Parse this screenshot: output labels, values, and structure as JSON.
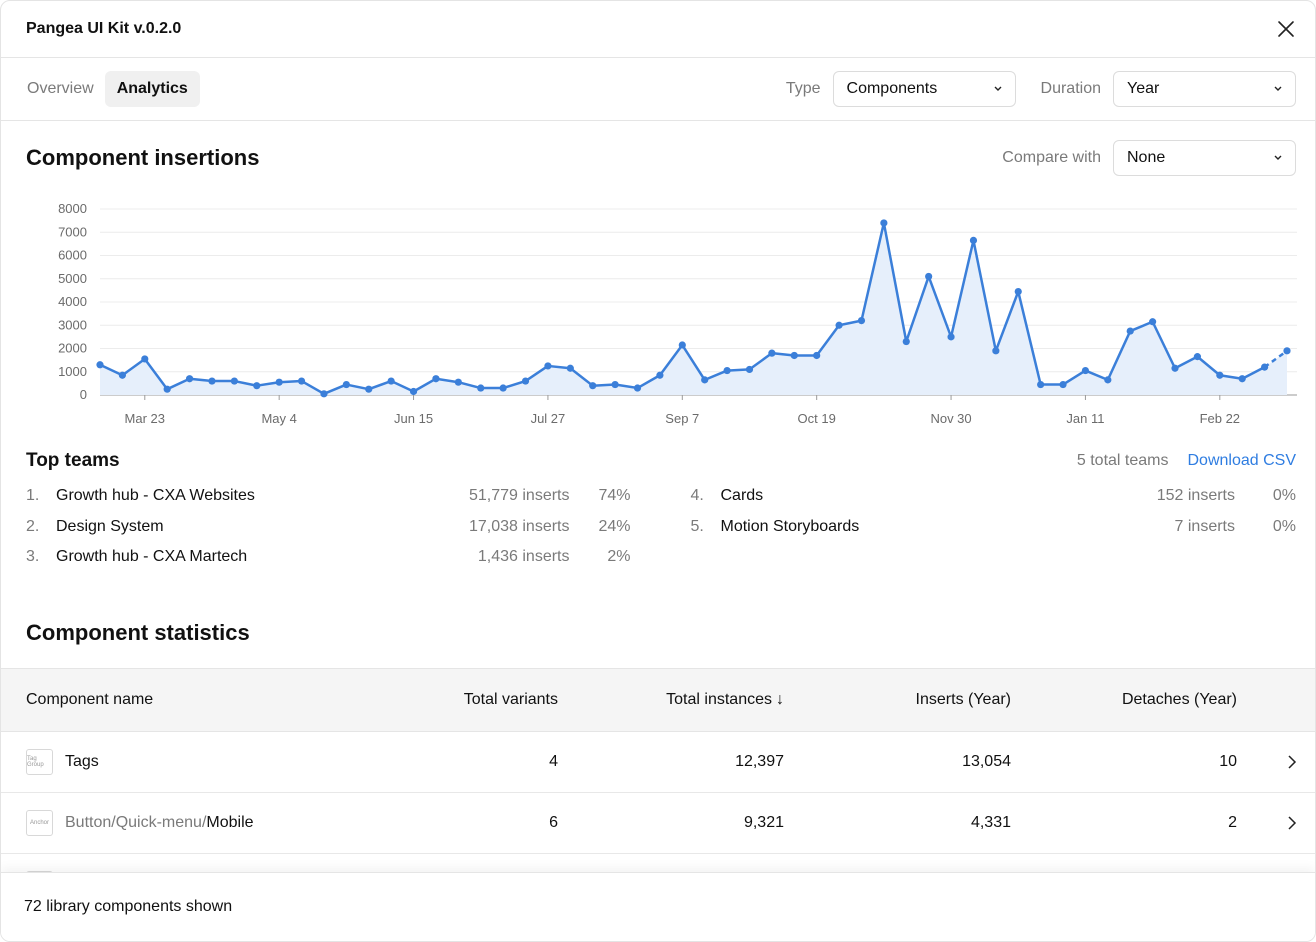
{
  "window": {
    "title": "Pangea UI Kit v.0.2.0"
  },
  "tabs": [
    {
      "label": "Overview",
      "active": false
    },
    {
      "label": "Analytics",
      "active": true
    }
  ],
  "filters": {
    "type_label": "Type",
    "type_value": "Components",
    "duration_label": "Duration",
    "duration_value": "Year"
  },
  "insertions": {
    "title": "Component insertions",
    "compare_label": "Compare with",
    "compare_value": "None"
  },
  "colors": {
    "accent": "#2f7de1",
    "line": "#3b7fd9",
    "area": "#e6effb"
  },
  "chart_data": {
    "type": "line",
    "title": "",
    "xlabel": "",
    "ylabel": "",
    "ylim": [
      0,
      8000
    ],
    "yticks": [
      "0",
      "1000",
      "2000",
      "3000",
      "4000",
      "5000",
      "6000",
      "7000",
      "8000"
    ],
    "xtick_labels": [
      "Mar 23",
      "May 4",
      "Jun 15",
      "Jul 27",
      "Sep 7",
      "Oct 19",
      "Nov 30",
      "Jan 11",
      "Feb 22"
    ],
    "grid": true,
    "values": [
      1300,
      850,
      1550,
      250,
      700,
      600,
      600,
      400,
      550,
      600,
      50,
      450,
      250,
      600,
      150,
      700,
      550,
      300,
      300,
      600,
      1250,
      1150,
      400,
      450,
      300,
      850,
      2150,
      650,
      1050,
      1100,
      1800,
      1700,
      1700,
      3000,
      3200,
      7400,
      2300,
      5100,
      2500,
      6650,
      1900,
      4450,
      450,
      450,
      1050,
      650,
      2750,
      3150,
      1150,
      1650,
      850,
      700,
      1200,
      1900
    ],
    "projected_last": true
  },
  "top_teams": {
    "title": "Top teams",
    "total": "5 total teams",
    "download": "Download CSV",
    "left": [
      {
        "num": "1.",
        "name": "Growth hub - CXA Websites",
        "inserts": "51,779 inserts",
        "pct": "74%"
      },
      {
        "num": "2.",
        "name": "Design System",
        "inserts": "17,038 inserts",
        "pct": "24%"
      },
      {
        "num": "3.",
        "name": "Growth hub - CXA Martech",
        "inserts": "1,436 inserts",
        "pct": "2%"
      }
    ],
    "right": [
      {
        "num": "4.",
        "name": "Cards",
        "inserts": "152 inserts",
        "pct": "0%"
      },
      {
        "num": "5.",
        "name": "Motion Storyboards",
        "inserts": "7 inserts",
        "pct": "0%"
      }
    ]
  },
  "stats": {
    "title": "Component statistics",
    "columns": {
      "name": "Component name",
      "variants": "Total variants",
      "instances": "Total instances",
      "sort_arrow": "↓",
      "inserts": "Inserts (Year)",
      "detaches": "Detaches (Year)"
    },
    "rows": [
      {
        "thumb": "Tag Group",
        "prefix": "",
        "name": "Tags",
        "variants": "4",
        "instances": "12,397",
        "inserts": "13,054",
        "detaches": "10"
      },
      {
        "thumb": "Anchor",
        "prefix": "Button/Quick-menu/",
        "name": "Mobile",
        "variants": "6",
        "instances": "9,321",
        "inserts": "4,331",
        "detaches": "2"
      },
      {
        "thumb": "",
        "prefix": "",
        "name": "",
        "variants": "",
        "instances": "",
        "inserts": "",
        "detaches": ""
      }
    ]
  },
  "footer": {
    "text": "72 library components shown"
  }
}
